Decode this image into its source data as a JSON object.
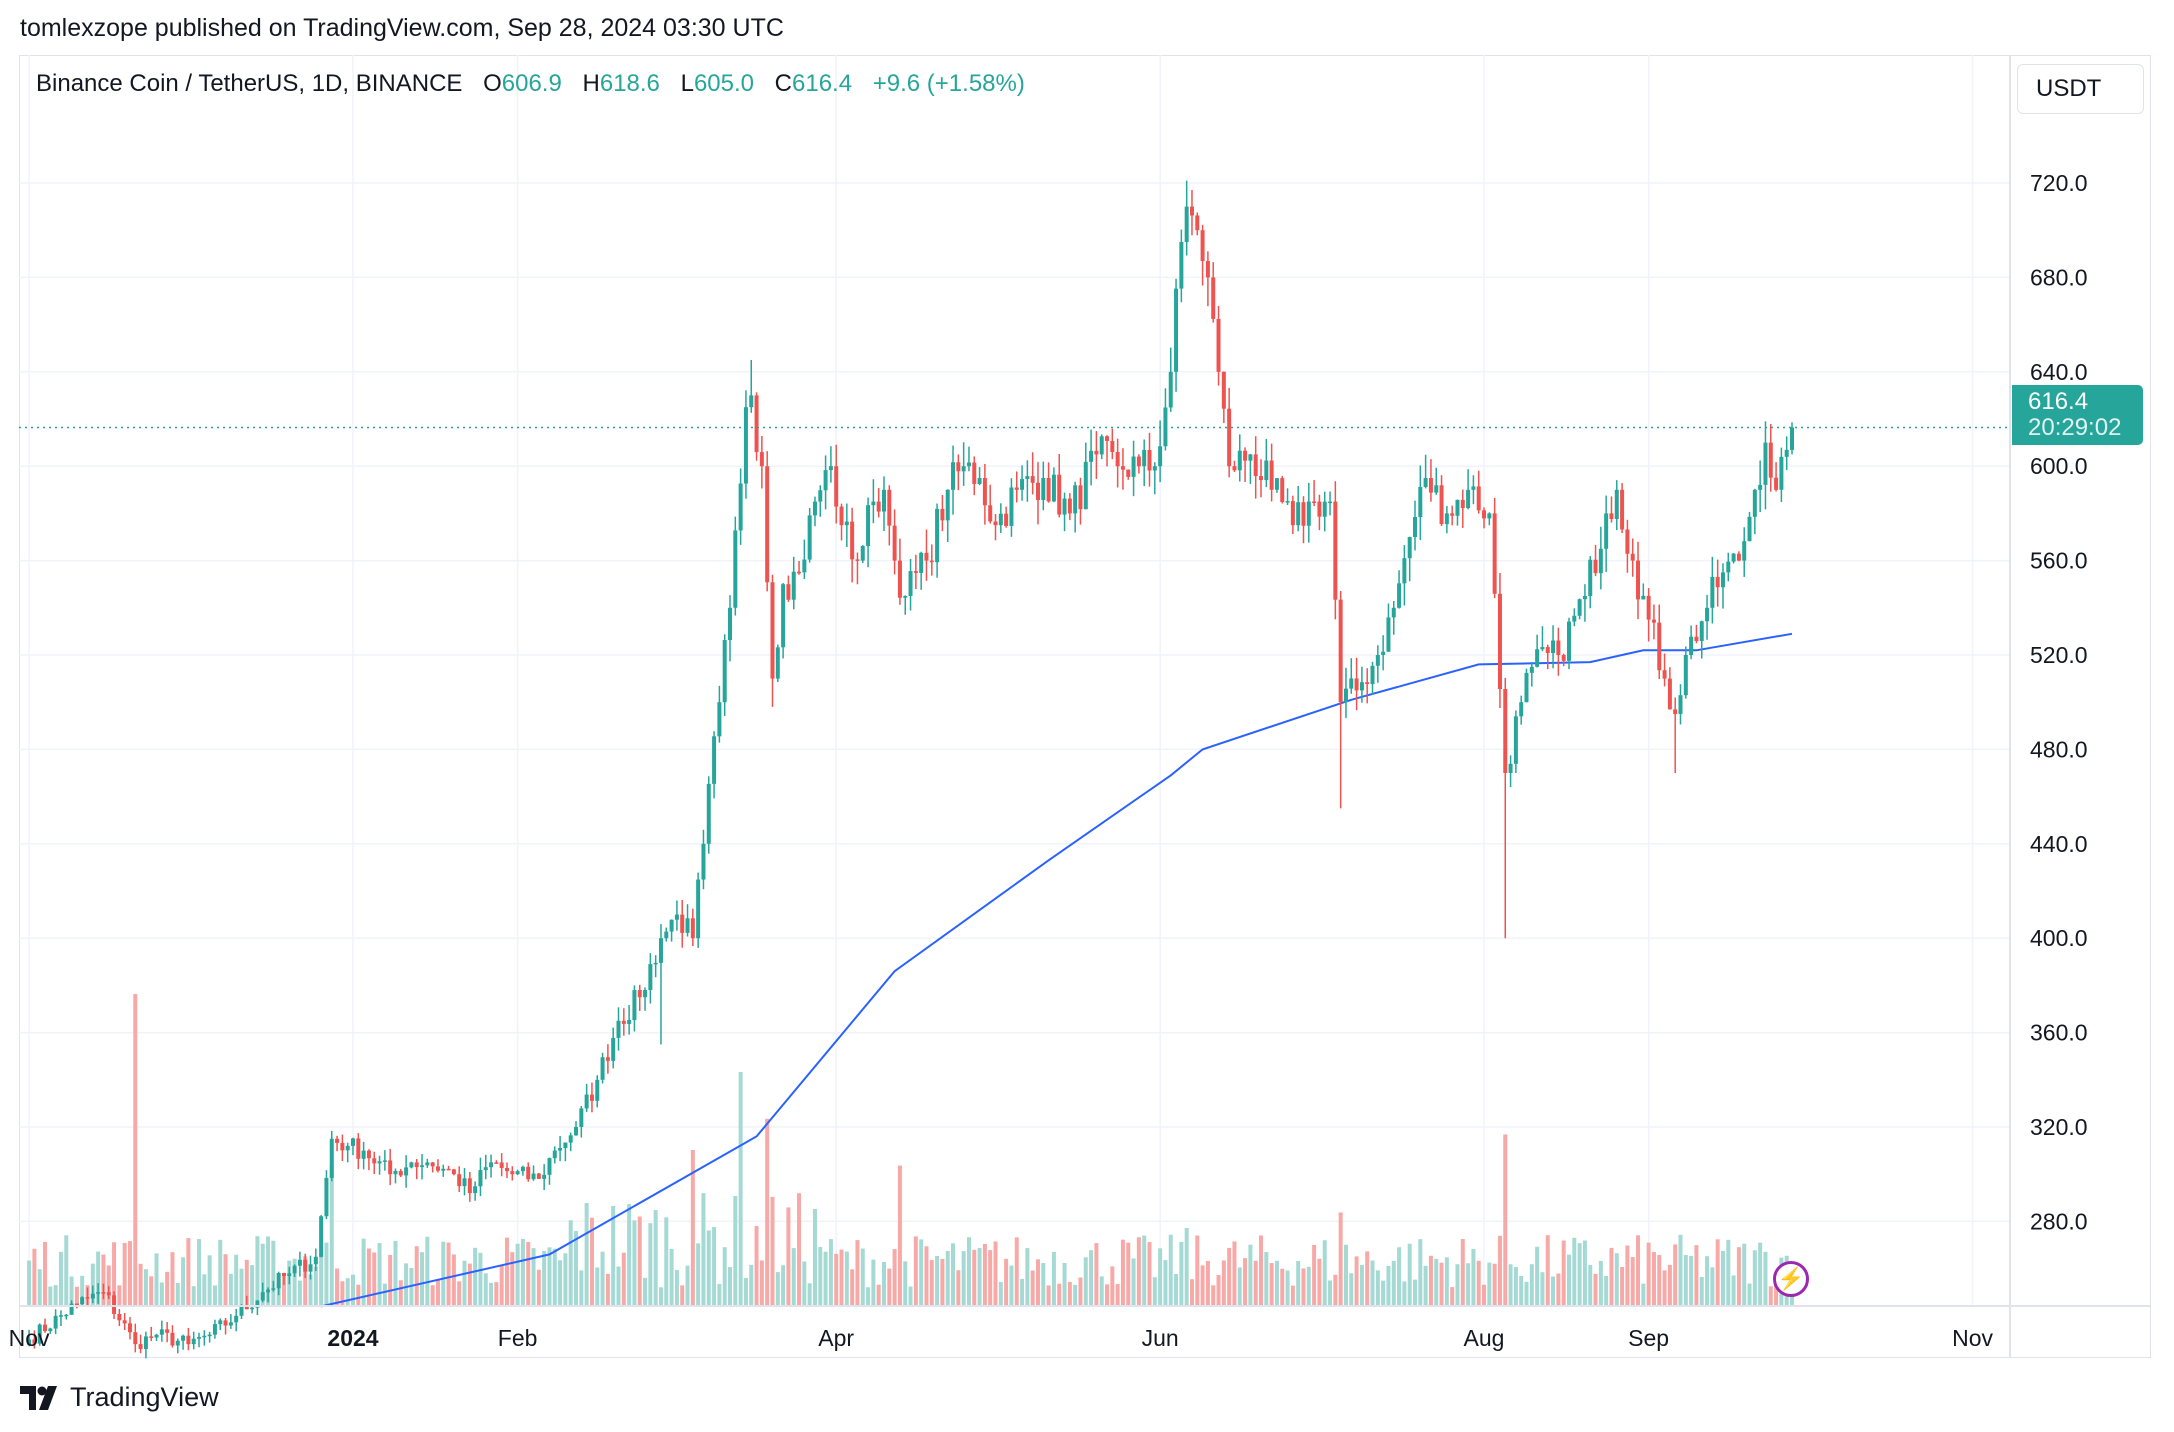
{
  "publisher_line": "tomlexzope published on TradingView.com, Sep 28, 2024 03:30 UTC",
  "legend": {
    "symbol": "Binance Coin / TetherUS, 1D, BINANCE",
    "o_label": "O",
    "o": "606.9",
    "h_label": "H",
    "h": "618.6",
    "l_label": "L",
    "l": "605.0",
    "c_label": "C",
    "c": "616.4",
    "change": "+9.6 (+1.58%)"
  },
  "currency_button": "USDT",
  "last_price": {
    "price": "616.4",
    "countdown": "20:29:02"
  },
  "footer_logo": "TradingView",
  "icons": {
    "logo": "tradingview-logo-icon",
    "alert": "lightning-bolt-icon"
  },
  "colors": {
    "up": "#26a69a",
    "down": "#ef5350",
    "ma": "#2962ff",
    "alert": "#9c27b0",
    "grid": "#f0f3fa"
  },
  "chart_data": {
    "type": "candlestick",
    "title": "Binance Coin / TetherUS, 1D, BINANCE",
    "y_ticks": [
      "280.0",
      "320.0",
      "360.0",
      "400.0",
      "440.0",
      "480.0",
      "520.0",
      "560.0",
      "600.0",
      "640.0",
      "680.0",
      "720.0"
    ],
    "ylim": [
      244,
      760
    ],
    "x_ticks": [
      {
        "date": "2023-11-01",
        "label": "Nov"
      },
      {
        "date": "2024-01-01",
        "label": "2024"
      },
      {
        "date": "2024-02-01",
        "label": "Feb"
      },
      {
        "date": "2024-04-01",
        "label": "Apr"
      },
      {
        "date": "2024-06-01",
        "label": "Jun"
      },
      {
        "date": "2024-08-01",
        "label": "Aug"
      },
      {
        "date": "2024-09-01",
        "label": "Sep"
      },
      {
        "date": "2024-11-01",
        "label": "Nov"
      }
    ],
    "xlim": [
      "2023-10-30",
      "2024-11-10"
    ],
    "grid": true,
    "approx_close_waypoints": [
      [
        "2023-11-01",
        230
      ],
      [
        "2023-11-10",
        245
      ],
      [
        "2023-11-15",
        250
      ],
      [
        "2023-11-21",
        228
      ],
      [
        "2023-11-25",
        232
      ],
      [
        "2023-12-01",
        228
      ],
      [
        "2023-12-05",
        232
      ],
      [
        "2023-12-10",
        240
      ],
      [
        "2023-12-15",
        250
      ],
      [
        "2023-12-20",
        258
      ],
      [
        "2023-12-25",
        265
      ],
      [
        "2023-12-28",
        315
      ],
      [
        "2023-12-31",
        312
      ],
      [
        "2024-01-03",
        310
      ],
      [
        "2024-01-08",
        300
      ],
      [
        "2024-01-12",
        305
      ],
      [
        "2024-01-15",
        305
      ],
      [
        "2024-01-20",
        300
      ],
      [
        "2024-01-23",
        292
      ],
      [
        "2024-01-27",
        305
      ],
      [
        "2024-01-31",
        300
      ],
      [
        "2024-02-05",
        298
      ],
      [
        "2024-02-08",
        310
      ],
      [
        "2024-02-12",
        320
      ],
      [
        "2024-02-16",
        340
      ],
      [
        "2024-02-20",
        365
      ],
      [
        "2024-02-24",
        375
      ],
      [
        "2024-02-28",
        400
      ],
      [
        "2024-03-02",
        410
      ],
      [
        "2024-03-05",
        400
      ],
      [
        "2024-03-07",
        440
      ],
      [
        "2024-03-10",
        500
      ],
      [
        "2024-03-12",
        540
      ],
      [
        "2024-03-15",
        625
      ],
      [
        "2024-03-16",
        630
      ],
      [
        "2024-03-18",
        600
      ],
      [
        "2024-03-20",
        510
      ],
      [
        "2024-03-22",
        550
      ],
      [
        "2024-03-25",
        555
      ],
      [
        "2024-03-28",
        585
      ],
      [
        "2024-03-31",
        600
      ],
      [
        "2024-04-02",
        575
      ],
      [
        "2024-04-05",
        560
      ],
      [
        "2024-04-08",
        585
      ],
      [
        "2024-04-10",
        590
      ],
      [
        "2024-04-12",
        560
      ],
      [
        "2024-04-14",
        545
      ],
      [
        "2024-04-18",
        560
      ],
      [
        "2024-04-22",
        590
      ],
      [
        "2024-04-25",
        600
      ],
      [
        "2024-04-28",
        595
      ],
      [
        "2024-05-01",
        575
      ],
      [
        "2024-05-05",
        590
      ],
      [
        "2024-05-10",
        595
      ],
      [
        "2024-05-15",
        580
      ],
      [
        "2024-05-20",
        605
      ],
      [
        "2024-05-24",
        600
      ],
      [
        "2024-05-28",
        600
      ],
      [
        "2024-05-31",
        600
      ],
      [
        "2024-06-03",
        640
      ],
      [
        "2024-06-05",
        695
      ],
      [
        "2024-06-06",
        710
      ],
      [
        "2024-06-08",
        700
      ],
      [
        "2024-06-10",
        680
      ],
      [
        "2024-06-12",
        640
      ],
      [
        "2024-06-14",
        600
      ],
      [
        "2024-06-18",
        605
      ],
      [
        "2024-06-22",
        590
      ],
      [
        "2024-06-26",
        575
      ],
      [
        "2024-06-30",
        585
      ],
      [
        "2024-07-03",
        585
      ],
      [
        "2024-07-05",
        500
      ],
      [
        "2024-07-08",
        505
      ],
      [
        "2024-07-12",
        520
      ],
      [
        "2024-07-15",
        540
      ],
      [
        "2024-07-18",
        570
      ],
      [
        "2024-07-21",
        595
      ],
      [
        "2024-07-25",
        580
      ],
      [
        "2024-07-29",
        590
      ],
      [
        "2024-08-02",
        580
      ],
      [
        "2024-08-05",
        470
      ],
      [
        "2024-08-08",
        500
      ],
      [
        "2024-08-10",
        515
      ],
      [
        "2024-08-15",
        520
      ],
      [
        "2024-08-20",
        545
      ],
      [
        "2024-08-24",
        580
      ],
      [
        "2024-08-26",
        590
      ],
      [
        "2024-08-29",
        560
      ],
      [
        "2024-09-01",
        535
      ],
      [
        "2024-09-04",
        510
      ],
      [
        "2024-09-06",
        495
      ],
      [
        "2024-09-08",
        520
      ],
      [
        "2024-09-12",
        540
      ],
      [
        "2024-09-15",
        555
      ],
      [
        "2024-09-18",
        560
      ],
      [
        "2024-09-21",
        590
      ],
      [
        "2024-09-23",
        610
      ],
      [
        "2024-09-25",
        590
      ],
      [
        "2024-09-27",
        606.9
      ],
      [
        "2024-09-28",
        616.4
      ]
    ],
    "extreme_wicks": [
      [
        "2024-02-28",
        "low",
        355
      ],
      [
        "2024-03-16",
        "high",
        645
      ],
      [
        "2024-03-20",
        "low",
        498
      ],
      [
        "2024-06-06",
        "high",
        721
      ],
      [
        "2024-07-05",
        "low",
        455
      ],
      [
        "2024-08-05",
        "low",
        400
      ],
      [
        "2024-09-06",
        "low",
        470
      ],
      [
        "2024-09-28",
        "high",
        618.6
      ]
    ],
    "moving_average": [
      [
        "2023-12-26",
        244
      ],
      [
        "2024-02-07",
        266
      ],
      [
        "2024-03-17",
        316
      ],
      [
        "2024-04-12",
        386
      ],
      [
        "2024-05-11",
        433
      ],
      [
        "2024-06-03",
        469
      ],
      [
        "2024-06-09",
        480
      ],
      [
        "2024-07-07",
        501
      ],
      [
        "2024-07-31",
        516
      ],
      [
        "2024-08-21",
        517
      ],
      [
        "2024-08-31",
        522
      ],
      [
        "2024-09-10",
        522
      ],
      [
        "2024-09-28",
        529
      ]
    ],
    "volume_relative_spikes": [
      [
        "2023-11-21",
        1.0
      ],
      [
        "2023-12-28",
        0.45
      ],
      [
        "2024-03-05",
        0.5
      ],
      [
        "2024-03-14",
        0.75
      ],
      [
        "2024-03-19",
        0.6
      ],
      [
        "2024-04-13",
        0.45
      ],
      [
        "2024-06-06",
        0.25
      ],
      [
        "2024-07-05",
        0.3
      ],
      [
        "2024-08-05",
        0.55
      ]
    ],
    "current_price": 616.4
  }
}
